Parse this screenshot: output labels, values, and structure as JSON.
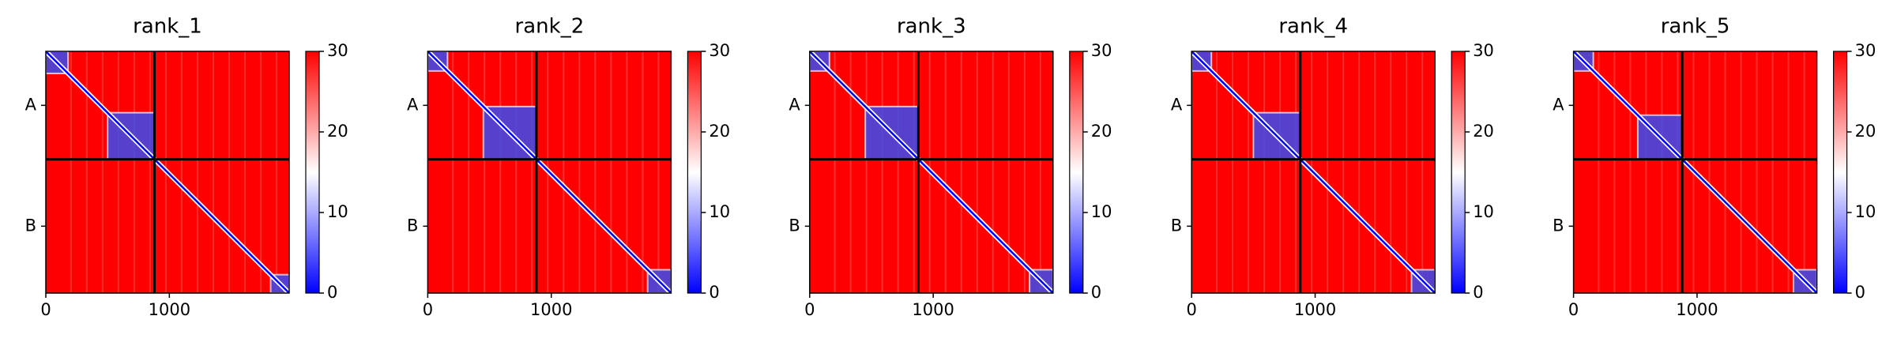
{
  "chart_data": [
    {
      "type": "heatmap",
      "title": "rank_1",
      "xlim": [
        0,
        1970
      ],
      "xticks": [
        0,
        1000
      ],
      "ylim": [
        1970,
        0
      ],
      "yticks": [
        {
          "value": 440,
          "label": "A"
        },
        {
          "value": 1425,
          "label": "B"
        }
      ],
      "boundaries": [
        880
      ],
      "blocks": [
        [
          0,
          180
        ],
        [
          500,
          880
        ],
        [
          1820,
          1970
        ]
      ],
      "colorbar": {
        "lim": [
          0,
          30
        ],
        "ticks": [
          0,
          10,
          20,
          30
        ],
        "colors": [
          "#0000ff",
          "#ffffff",
          "#ff0000"
        ]
      }
    },
    {
      "type": "heatmap",
      "title": "rank_2",
      "xlim": [
        0,
        1970
      ],
      "xticks": [
        0,
        1000
      ],
      "ylim": [
        1970,
        0
      ],
      "yticks": [
        {
          "value": 440,
          "label": "A"
        },
        {
          "value": 1425,
          "label": "B"
        }
      ],
      "boundaries": [
        880
      ],
      "blocks": [
        [
          0,
          160
        ],
        [
          450,
          880
        ],
        [
          1780,
          1970
        ]
      ],
      "colorbar": {
        "lim": [
          0,
          30
        ],
        "ticks": [
          0,
          10,
          20,
          30
        ],
        "colors": [
          "#0000ff",
          "#ffffff",
          "#ff0000"
        ]
      }
    },
    {
      "type": "heatmap",
      "title": "rank_3",
      "xlim": [
        0,
        1970
      ],
      "xticks": [
        0,
        1000
      ],
      "ylim": [
        1970,
        0
      ],
      "yticks": [
        {
          "value": 440,
          "label": "A"
        },
        {
          "value": 1425,
          "label": "B"
        }
      ],
      "boundaries": [
        880
      ],
      "blocks": [
        [
          0,
          160
        ],
        [
          450,
          880
        ],
        [
          1780,
          1970
        ]
      ],
      "colorbar": {
        "lim": [
          0,
          30
        ],
        "ticks": [
          0,
          10,
          20,
          30
        ],
        "colors": [
          "#0000ff",
          "#ffffff",
          "#ff0000"
        ]
      }
    },
    {
      "type": "heatmap",
      "title": "rank_4",
      "xlim": [
        0,
        1970
      ],
      "xticks": [
        0,
        1000
      ],
      "ylim": [
        1970,
        0
      ],
      "yticks": [
        {
          "value": 440,
          "label": "A"
        },
        {
          "value": 1425,
          "label": "B"
        }
      ],
      "boundaries": [
        880
      ],
      "blocks": [
        [
          0,
          160
        ],
        [
          500,
          880
        ],
        [
          1780,
          1970
        ]
      ],
      "colorbar": {
        "lim": [
          0,
          30
        ],
        "ticks": [
          0,
          10,
          20,
          30
        ],
        "colors": [
          "#0000ff",
          "#ffffff",
          "#ff0000"
        ]
      }
    },
    {
      "type": "heatmap",
      "title": "rank_5",
      "xlim": [
        0,
        1970
      ],
      "xticks": [
        0,
        1000
      ],
      "ylim": [
        1970,
        0
      ],
      "yticks": [
        {
          "value": 440,
          "label": "A"
        },
        {
          "value": 1425,
          "label": "B"
        }
      ],
      "boundaries": [
        880
      ],
      "blocks": [
        [
          0,
          160
        ],
        [
          520,
          880
        ],
        [
          1780,
          1970
        ]
      ],
      "colorbar": {
        "lim": [
          0,
          30
        ],
        "ticks": [
          0,
          10,
          20,
          30
        ],
        "colors": [
          "#0000ff",
          "#ffffff",
          "#ff0000"
        ]
      }
    }
  ]
}
